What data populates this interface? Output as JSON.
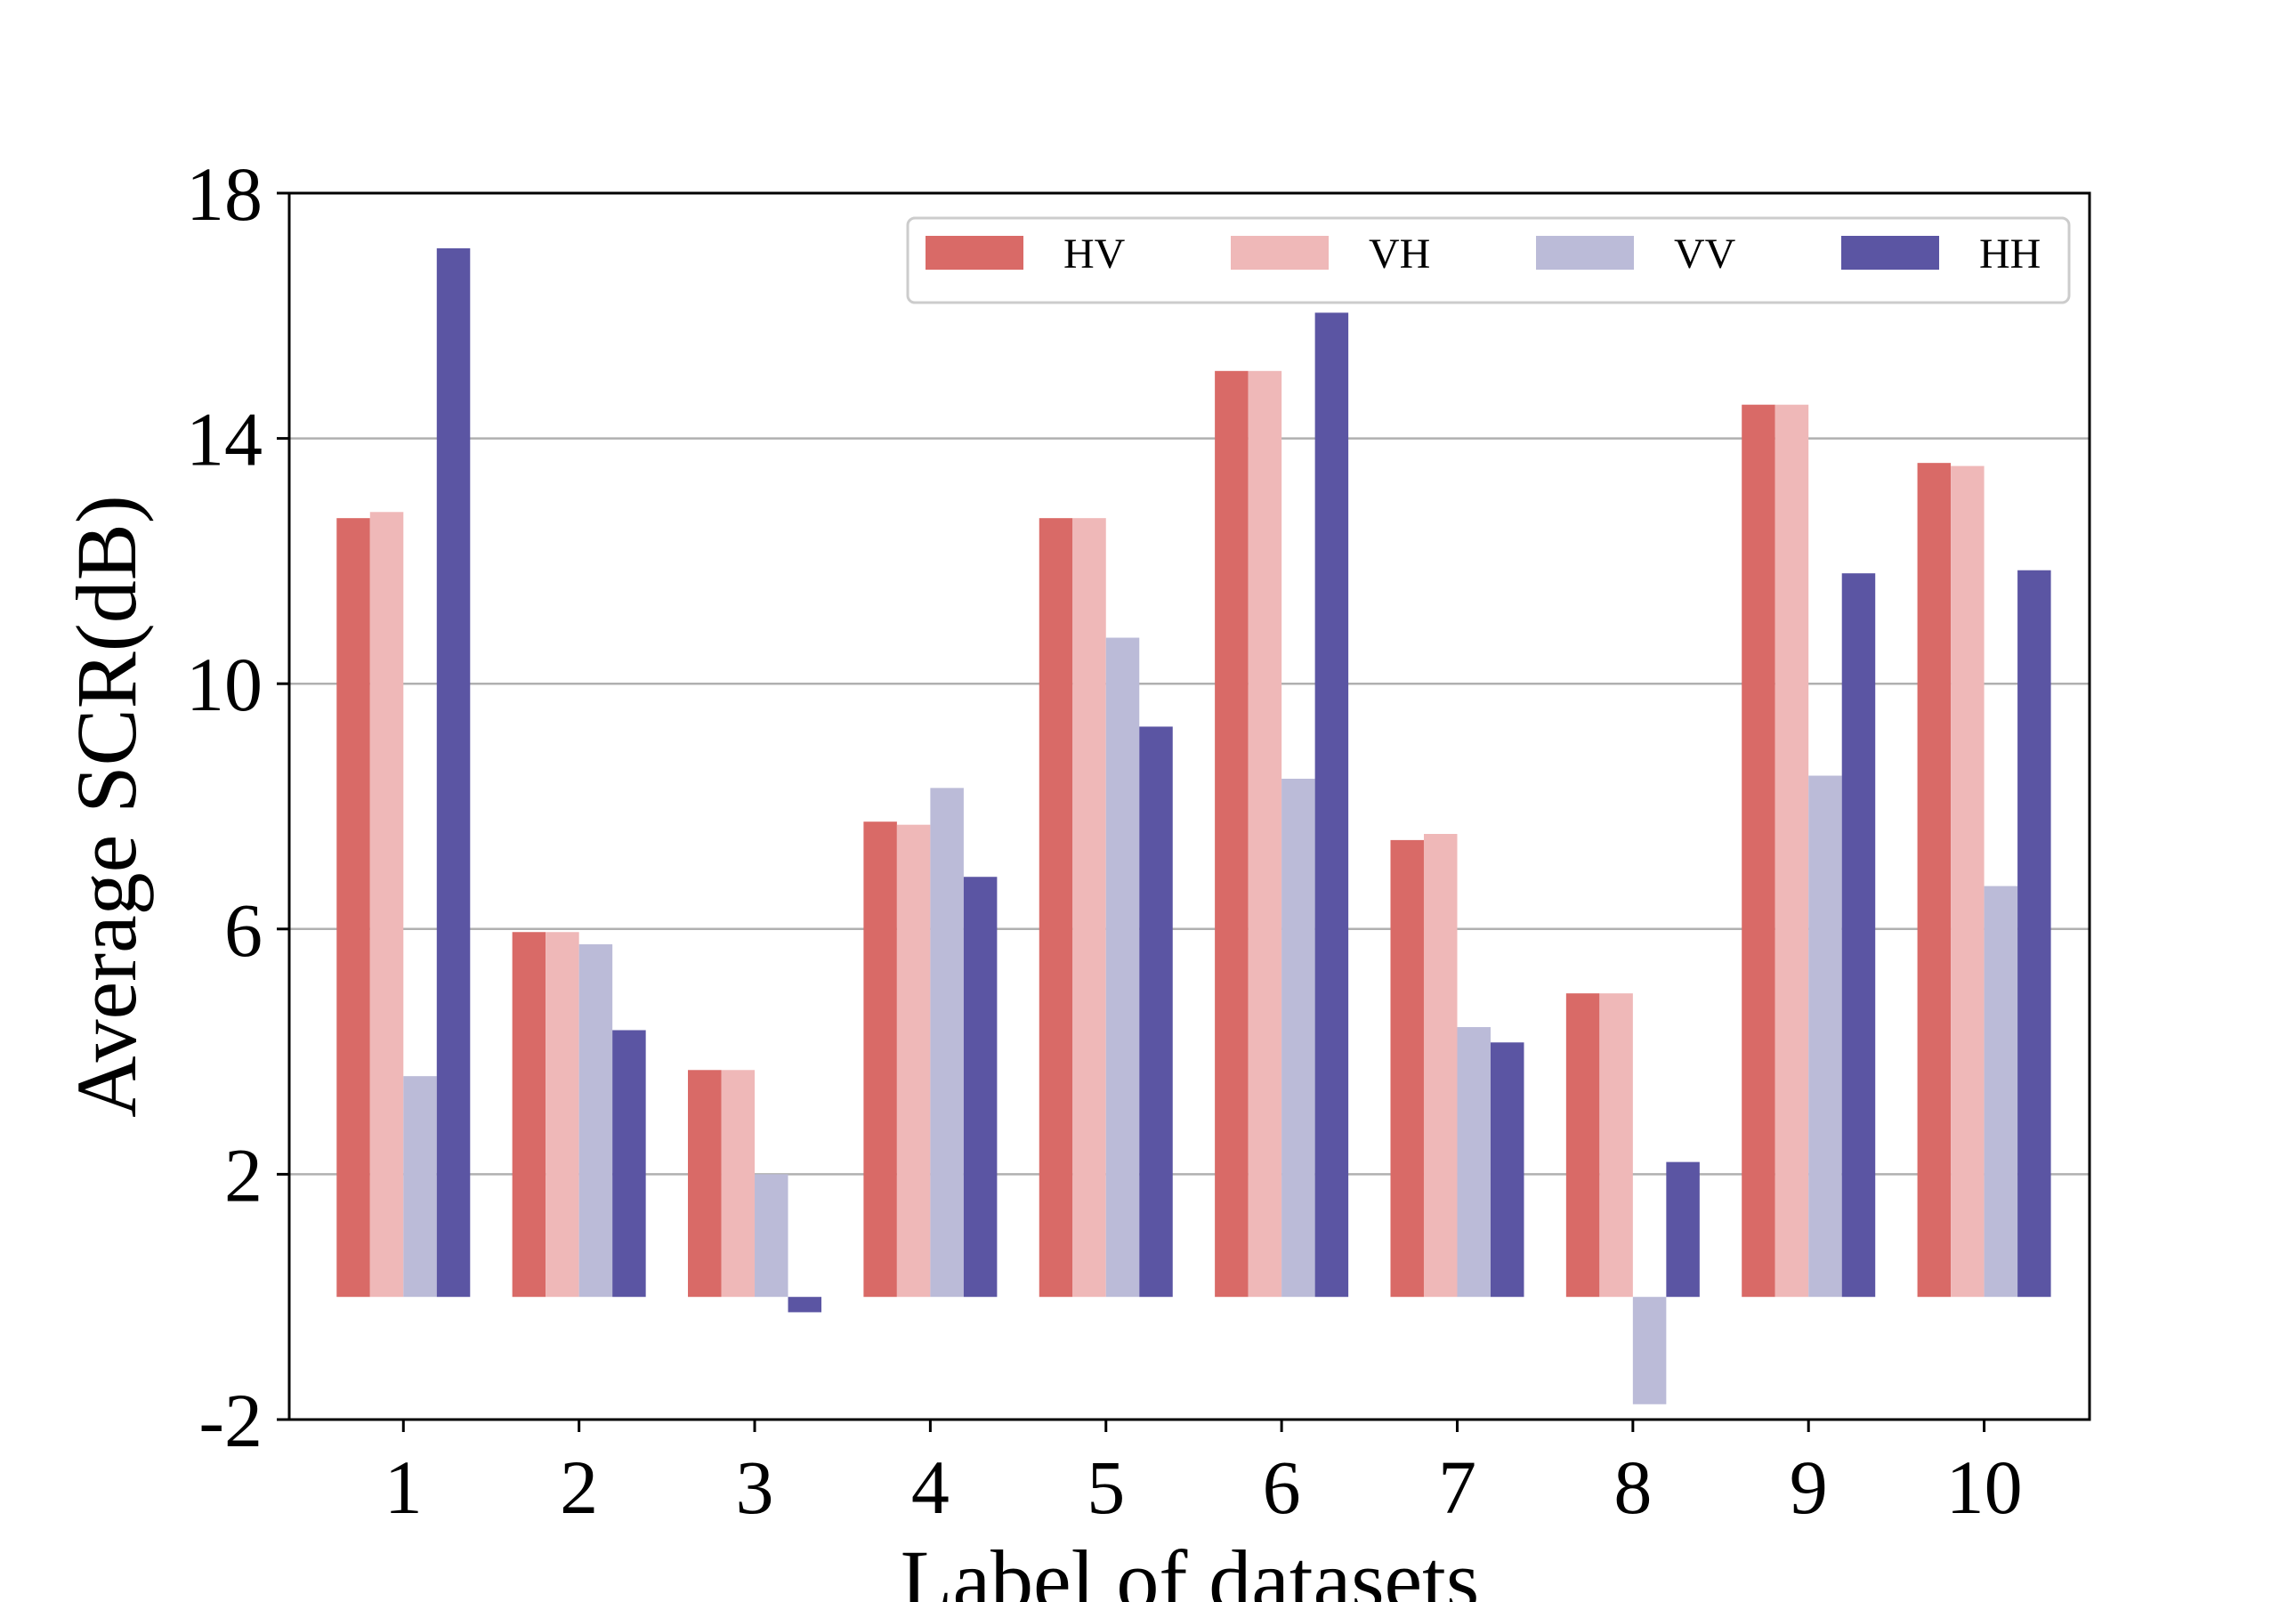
{
  "chart_data": {
    "type": "bar",
    "title": "",
    "xlabel": "Label of datasets",
    "ylabel": "Average SCR(dB)",
    "categories": [
      "1",
      "2",
      "3",
      "4",
      "5",
      "6",
      "7",
      "8",
      "9",
      "10"
    ],
    "series": [
      {
        "name": "HV",
        "color": "#d96a67",
        "values": [
          12.7,
          5.95,
          3.7,
          7.75,
          12.7,
          15.1,
          7.45,
          4.95,
          14.55,
          13.6
        ]
      },
      {
        "name": "VH",
        "color": "#efb8b8",
        "values": [
          12.8,
          5.95,
          3.7,
          7.7,
          12.7,
          15.1,
          7.55,
          4.95,
          14.55,
          13.55
        ]
      },
      {
        "name": "VV",
        "color": "#bbbbd8",
        "values": [
          3.6,
          5.75,
          2.0,
          8.3,
          10.75,
          8.45,
          4.4,
          -1.75,
          8.5,
          6.7
        ]
      },
      {
        "name": "HH",
        "color": "#5b55a3",
        "values": [
          17.1,
          4.35,
          -0.25,
          6.85,
          9.3,
          16.05,
          4.15,
          2.2,
          11.8,
          11.85
        ]
      }
    ],
    "ylim": [
      -2,
      18
    ],
    "yticks": [
      "-2",
      "2",
      "6",
      "10",
      "14",
      "18"
    ],
    "grid": "horizontal",
    "legend": "top-right"
  }
}
